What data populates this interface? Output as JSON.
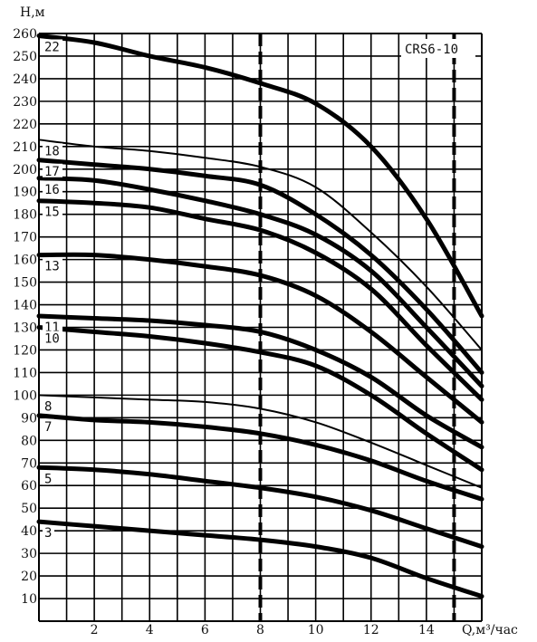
{
  "chart_data": {
    "type": "line",
    "title": "CRS6-10",
    "xlabel": "Q,м³/час",
    "ylabel": "Н,м",
    "xlim": [
      0,
      16
    ],
    "ylim": [
      0,
      260
    ],
    "grid": true,
    "x_ticks": [
      "2",
      "4",
      "6",
      "8",
      "10",
      "12",
      "14"
    ],
    "y_ticks": [
      "10",
      "20",
      "30",
      "40",
      "50",
      "60",
      "70",
      "80",
      "90",
      "100",
      "110",
      "120",
      "130",
      "140",
      "150",
      "160",
      "170",
      "180",
      "190",
      "200",
      "210",
      "220",
      "230",
      "240",
      "250",
      "260"
    ],
    "reference_lines_x": [
      8,
      15
    ],
    "series": [
      {
        "name": "22",
        "weight": "bold",
        "x": [
          0,
          2,
          4,
          6,
          8,
          10,
          12,
          14,
          16
        ],
        "y": [
          259,
          256,
          250,
          245,
          238,
          229,
          210,
          178,
          135
        ]
      },
      {
        "name": "18",
        "weight": "thin",
        "x": [
          0,
          2,
          4,
          6,
          8,
          10,
          12,
          14,
          16
        ],
        "y": [
          213,
          210,
          208,
          205,
          201,
          192,
          172,
          148,
          120
        ]
      },
      {
        "name": "17",
        "weight": "bold",
        "x": [
          0,
          2,
          4,
          6,
          8,
          10,
          12,
          14,
          16
        ],
        "y": [
          204,
          202,
          200,
          197,
          193,
          180,
          162,
          138,
          110
        ]
      },
      {
        "name": "16",
        "weight": "bold",
        "x": [
          0,
          2,
          4,
          6,
          8,
          10,
          12,
          14,
          16
        ],
        "y": [
          196,
          195,
          191,
          186,
          180,
          171,
          155,
          130,
          104
        ]
      },
      {
        "name": "15",
        "weight": "bold",
        "x": [
          0,
          2,
          4,
          6,
          8,
          10,
          12,
          14,
          16
        ],
        "y": [
          186,
          185,
          183,
          178,
          173,
          163,
          147,
          122,
          98
        ]
      },
      {
        "name": "13",
        "weight": "bold",
        "x": [
          0,
          2,
          4,
          6,
          8,
          10,
          12,
          14,
          16
        ],
        "y": [
          162,
          162,
          160,
          157,
          153,
          144,
          128,
          108,
          88
        ]
      },
      {
        "name": "11",
        "weight": "bold",
        "x": [
          0,
          2,
          4,
          6,
          8,
          10,
          12,
          14,
          16
        ],
        "y": [
          135,
          134,
          133,
          131,
          128,
          120,
          108,
          91,
          77
        ]
      },
      {
        "name": "10",
        "weight": "bold",
        "x": [
          0,
          2,
          4,
          6,
          8,
          10,
          12,
          14,
          16
        ],
        "y": [
          130,
          128,
          126,
          123,
          119,
          113,
          100,
          83,
          67
        ]
      },
      {
        "name": "8",
        "weight": "thin",
        "x": [
          0,
          2,
          4,
          6,
          8,
          10,
          12,
          14,
          16
        ],
        "y": [
          100,
          99,
          98,
          97,
          94,
          88,
          79,
          69,
          59
        ]
      },
      {
        "name": "7",
        "weight": "bold",
        "x": [
          0,
          2,
          4,
          6,
          8,
          10,
          12,
          14,
          16
        ],
        "y": [
          91,
          89,
          88,
          86,
          83,
          78,
          71,
          62,
          54
        ]
      },
      {
        "name": "5",
        "weight": "bold",
        "x": [
          0,
          2,
          4,
          6,
          8,
          10,
          12,
          14,
          16
        ],
        "y": [
          68,
          67,
          65,
          62,
          59,
          55,
          49,
          41,
          33
        ]
      },
      {
        "name": "3",
        "weight": "bold",
        "x": [
          0,
          2,
          4,
          6,
          8,
          10,
          12,
          14,
          16
        ],
        "y": [
          44,
          42,
          40,
          38,
          36,
          33,
          28,
          19,
          11
        ]
      }
    ]
  }
}
